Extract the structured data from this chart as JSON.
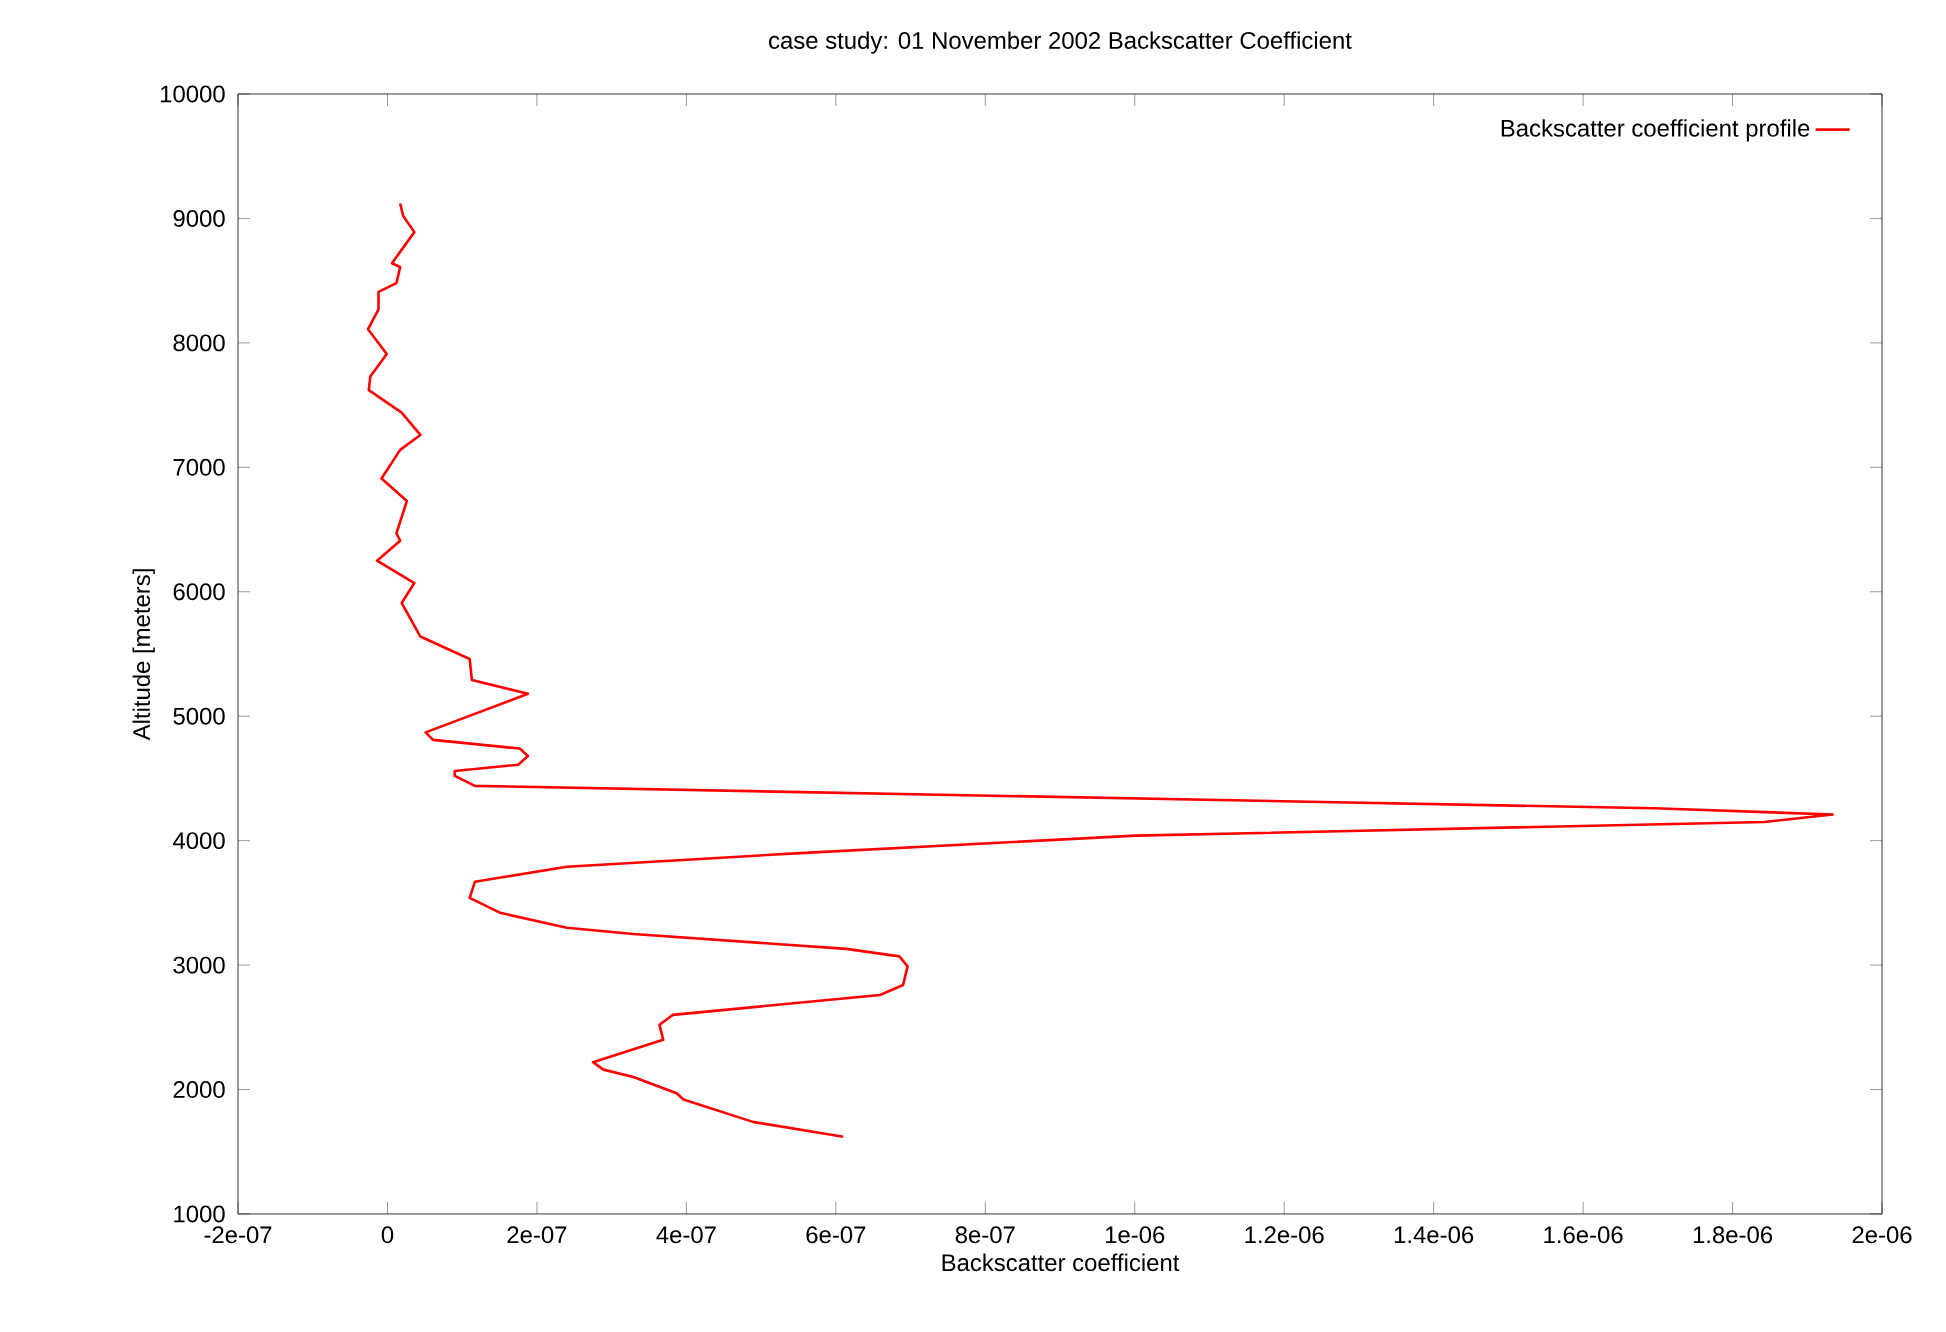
{
  "chart_data": {
    "type": "line",
    "title": "case study: 01 November 2002 Backscatter Coefficient",
    "xlabel": "Backscatter coefficient",
    "ylabel": "Altitude [meters]",
    "series": [
      {
        "name": "Backscatter coefficient profile",
        "color": "#ff0000",
        "x": [
          1.7e-08,
          2.1e-08,
          3.6e-08,
          6e-09,
          1.7e-08,
          1.2e-08,
          -1.2e-08,
          -1.2e-08,
          -2.6e-08,
          -1e-09,
          -2.3e-08,
          -2.5e-08,
          1.9e-08,
          4.4e-08,
          1.7e-08,
          -8e-09,
          2.6e-08,
          1.2e-08,
          1.7e-08,
          -1.4e-08,
          3.6e-08,
          1.9e-08,
          4.4e-08,
          1.1e-07,
          1.13e-07,
          1.88e-07,
          5.1e-08,
          6.1e-08,
          1.77e-07,
          1.88e-07,
          1.75e-07,
          9e-08,
          9e-08,
          1.17e-07,
          1.695e-06,
          1.934e-06,
          1.843e-06,
          1.001e-06,
          5.52e-07,
          2.4e-07,
          1.17e-07,
          1.1e-07,
          1.51e-07,
          2.4e-07,
          3.29e-07,
          6.14e-07,
          6.85e-07,
          6.96e-07,
          6.9e-07,
          6.59e-07,
          3.82e-07,
          3.64e-07,
          3.69e-07,
          2.75e-07,
          2.89e-07,
          3.29e-07,
          3.87e-07,
          3.96e-07,
          4.89e-07,
          6.1e-07
        ],
        "values": [
          9120,
          9020,
          8890,
          8640,
          8610,
          8480,
          8410,
          8270,
          8110,
          7910,
          7730,
          7620,
          7440,
          7260,
          7140,
          6910,
          6730,
          6470,
          6410,
          6250,
          6070,
          5910,
          5640,
          5460,
          5290,
          5180,
          4870,
          4810,
          4740,
          4680,
          4610,
          4560,
          4520,
          4440,
          4260,
          4210,
          4150,
          4040,
          3900,
          3790,
          3670,
          3540,
          3420,
          3300,
          3250,
          3130,
          3070,
          2990,
          2840,
          2760,
          2600,
          2520,
          2400,
          2220,
          2160,
          2100,
          1970,
          1920,
          1740,
          1620
        ]
      }
    ],
    "xlim": [
      -2e-07,
      2e-06
    ],
    "xticks": [
      {
        "value": -2e-07,
        "label": "-2e-07"
      },
      0,
      {
        "value": 2e-07,
        "label": "2e-07"
      },
      {
        "value": 4e-07,
        "label": "4e-07"
      },
      {
        "value": 6e-07,
        "label": "6e-07"
      },
      {
        "value": 8e-07,
        "label": "8e-07"
      },
      {
        "value": 1e-06,
        "label": "1e-06"
      },
      {
        "value": 1.2e-06,
        "label": "1.2e-06"
      },
      {
        "value": 1.4e-06,
        "label": "1.4e-06"
      },
      {
        "value": 1.6e-06,
        "label": "1.6e-06"
      },
      {
        "value": 1.8e-06,
        "label": "1.8e-06"
      },
      {
        "value": 2e-06,
        "label": "2e-06"
      }
    ],
    "ylim": [
      1000,
      10000
    ],
    "yticks": [
      1000,
      2000,
      3000,
      4000,
      5000,
      6000,
      7000,
      8000,
      9000,
      10000
    ],
    "grid": false,
    "legend": "top right",
    "marker": "none",
    "line_style": "solid"
  }
}
